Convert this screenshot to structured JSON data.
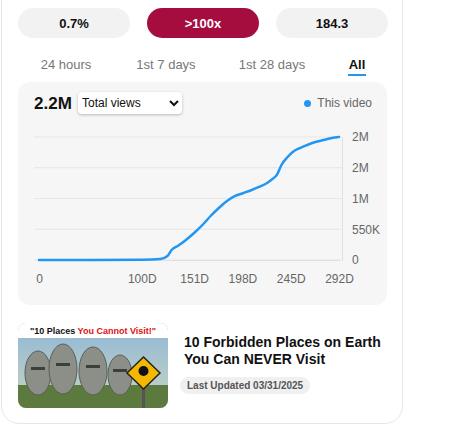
{
  "stats": [
    "0.7%",
    ">100x",
    "184.3"
  ],
  "tabs": [
    "24 hours",
    "1st 7 days",
    "1st 28 days",
    "All"
  ],
  "active_tab": "All",
  "header": {
    "total": "2.2M",
    "metric": "Total views"
  },
  "chart_data": {
    "type": "line",
    "x": [
      0,
      52,
      100,
      118,
      125,
      129,
      135,
      143,
      152,
      160,
      167,
      175,
      183,
      191,
      199,
      207,
      214,
      222,
      226,
      232,
      236,
      242,
      247,
      254,
      261,
      269,
      277,
      285,
      292
    ],
    "series": [
      {
        "name": "This video",
        "color": "#2196f3",
        "values": [
          0,
          0,
          5000,
          18000,
          72000,
          179000,
          250000,
          358000,
          501000,
          644000,
          787000,
          930000,
          1055000,
          1145000,
          1198000,
          1252000,
          1306000,
          1377000,
          1431000,
          1538000,
          1699000,
          1842000,
          1932000,
          2003000,
          2057000,
          2111000,
          2146000,
          2182000,
          2200000
        ]
      }
    ],
    "xlim": [
      0,
      292
    ],
    "xticks": [
      0,
      {
        "value": 100,
        "label": "100D"
      },
      {
        "value": 151,
        "label": "151D"
      },
      {
        "value": 198,
        "label": "198D"
      },
      {
        "value": 245,
        "label": "245D"
      },
      {
        "value": 292,
        "label": "292D"
      }
    ],
    "ylim": [
      0,
      2200000
    ],
    "yticks": [
      0,
      {
        "value": 550000,
        "label": "550K"
      },
      {
        "value": 1100000,
        "label": "1M"
      },
      {
        "value": 1650000,
        "label": "2M"
      },
      {
        "value": 2200000,
        "label": "2M"
      }
    ],
    "grid": true,
    "legend": "top-right"
  },
  "video": {
    "thumbnail_text": [
      "\"10 Places ",
      "You Cannot Visit!\""
    ],
    "title": "10 Forbidden Places on Earth You Can NEVER Visit",
    "updated": "Last Updated 03/31/2025"
  }
}
